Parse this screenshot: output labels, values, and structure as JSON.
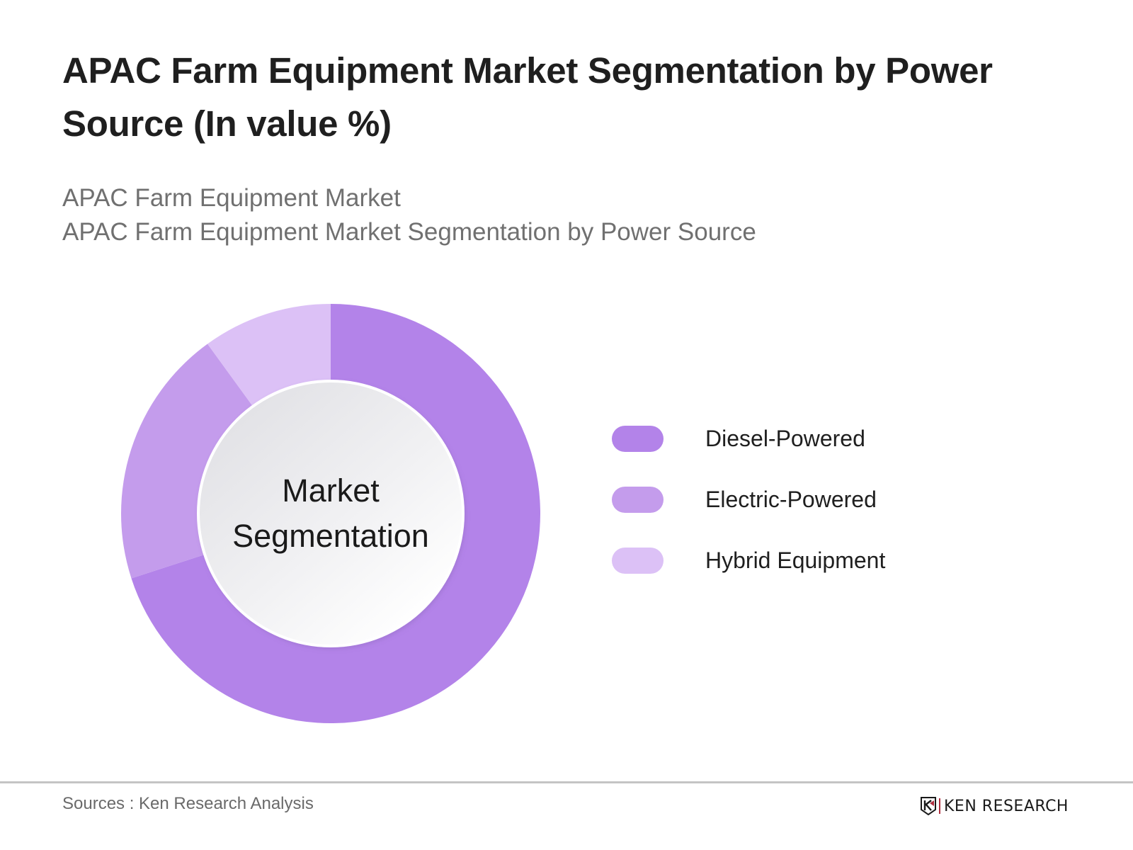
{
  "header": {
    "title": "APAC Farm Equipment Market Segmentation by Power Source (In value %)",
    "subtitle_line1": "APAC Farm Equipment Market",
    "subtitle_line2": "APAC Farm Equipment Market Segmentation by Power Source"
  },
  "chart": {
    "center_line1": "Market",
    "center_line2": "Segmentation"
  },
  "legend": {
    "items": [
      {
        "label": "Diesel-Powered",
        "color": "#B383E9"
      },
      {
        "label": "Electric-Powered",
        "color": "#C49CEC"
      },
      {
        "label": "Hybrid Equipment",
        "color": "#DCC1F6"
      }
    ]
  },
  "footer": {
    "source": "Sources : Ken Research Analysis",
    "brand": "KEN RESEARCH",
    "brand_icon": "ken-research-logo-icon"
  },
  "chart_data": {
    "type": "pie",
    "variant": "donut",
    "title": "APAC Farm Equipment Market Segmentation by Power Source (In value %)",
    "subtitle": "APAC Farm Equipment Market Segmentation by Power Source",
    "center_text": "Market Segmentation",
    "categories": [
      "Diesel-Powered",
      "Electric-Powered",
      "Hybrid Equipment"
    ],
    "values": [
      70,
      20,
      10
    ],
    "unit": "%",
    "colors": [
      "#B383E9",
      "#C49CEC",
      "#DCC1F6"
    ],
    "data_labels_shown": false,
    "legend_position": "right",
    "start_angle_deg": 0,
    "direction": "clockwise",
    "xlabel": "",
    "ylabel": ""
  }
}
